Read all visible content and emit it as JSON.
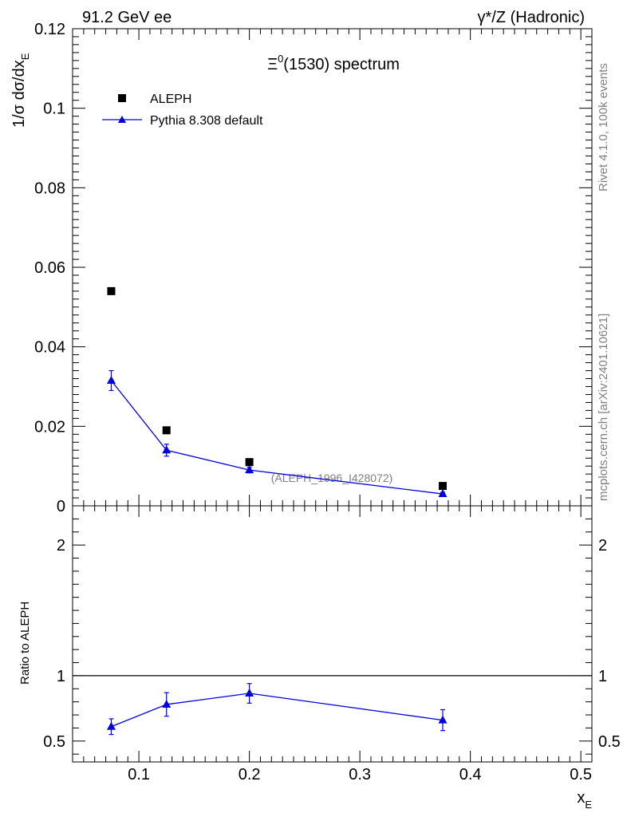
{
  "header": {
    "left": "91.2 GeV ee",
    "right": "γ*/Z (Hadronic)"
  },
  "side_text": {
    "rivet": "Rivet 4.1.0,  100k events",
    "mcplots": "mcplots.cern.ch [arXiv:2401.10621]"
  },
  "chart_data": [
    {
      "panel": "main",
      "type": "scatter",
      "title": "Ξ⁰(1530) spectrum",
      "title_parts": {
        "symbol": "Ξ",
        "sup": "0",
        "rest": "(1530) spectrum"
      },
      "ylabel": "1/σ  dσ/dx",
      "ylabel_sub": "E",
      "watermark": "(ALEPH_1996_I428072)",
      "xlim": [
        0.04,
        0.51
      ],
      "ylim": [
        0,
        0.12
      ],
      "yticks": [
        {
          "v": 0,
          "label": "0"
        },
        {
          "v": 0.02,
          "label": "0.02"
        },
        {
          "v": 0.04,
          "label": "0.04"
        },
        {
          "v": 0.06,
          "label": "0.06"
        },
        {
          "v": 0.08,
          "label": "0.08"
        },
        {
          "v": 0.1,
          "label": "0.1"
        },
        {
          "v": 0.12,
          "label": "0.12"
        }
      ],
      "legend_position": "top-left",
      "series": [
        {
          "name": "ALEPH",
          "marker": "square",
          "color": "#000000",
          "points": [
            {
              "x": 0.075,
              "y": 0.054
            },
            {
              "x": 0.125,
              "y": 0.019
            },
            {
              "x": 0.2,
              "y": 0.011
            },
            {
              "x": 0.375,
              "y": 0.005
            }
          ]
        },
        {
          "name": "Pythia 8.308 default",
          "marker": "triangle",
          "color": "#0000e0",
          "line": true,
          "points": [
            {
              "x": 0.075,
              "y": 0.0315,
              "err": 0.0025
            },
            {
              "x": 0.125,
              "y": 0.014,
              "err": 0.0015
            },
            {
              "x": 0.2,
              "y": 0.009,
              "err": 0.0007
            },
            {
              "x": 0.375,
              "y": 0.003,
              "err": 0.0004
            }
          ]
        }
      ]
    },
    {
      "panel": "ratio",
      "type": "line",
      "ylabel": "Ratio to ALEPH",
      "xlabel": "x",
      "xlabel_sub": "E",
      "xlim": [
        0.04,
        0.51
      ],
      "ylim": [
        0.34,
        2.3
      ],
      "reference_line": 1,
      "xticks": [
        {
          "v": 0.1,
          "label": "0.1"
        },
        {
          "v": 0.2,
          "label": "0.2"
        },
        {
          "v": 0.3,
          "label": "0.3"
        },
        {
          "v": 0.4,
          "label": "0.4"
        },
        {
          "v": 0.5,
          "label": "0.5"
        }
      ],
      "yticks": [
        {
          "v": 0.5,
          "label": "0.5"
        },
        {
          "v": 1,
          "label": "1"
        },
        {
          "v": 2,
          "label": "2"
        }
      ],
      "series": [
        {
          "name": "Pythia 8.308 default",
          "color": "#0000e0",
          "points": [
            {
              "x": 0.075,
              "y": 0.61,
              "err": 0.06
            },
            {
              "x": 0.125,
              "y": 0.78,
              "err": 0.09
            },
            {
              "x": 0.2,
              "y": 0.865,
              "err": 0.075
            },
            {
              "x": 0.375,
              "y": 0.66,
              "err": 0.08
            }
          ]
        }
      ]
    }
  ]
}
